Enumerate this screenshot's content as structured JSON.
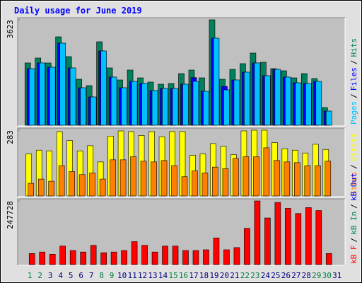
{
  "title": "Daily usage for June 2019",
  "legend_separator": "/",
  "chart_data": [
    {
      "type": "bar",
      "ylim": [
        0,
        3623
      ],
      "yticks": [
        3623
      ],
      "series": [
        {
          "name": "Hits",
          "color": "#00805c",
          "values": [
            2150,
            2319,
            2150,
            3043,
            2367,
            1594,
            1377,
            2874,
            1981,
            1570,
            1908,
            1642,
            1498,
            1425,
            1449,
            1787,
            1908,
            1642,
            3623,
            1594,
            1932,
            2126,
            2488,
            2174,
            1956,
            1884,
            1642,
            1787,
            1618,
            628,
            0
          ]
        },
        {
          "name": "Files",
          "color": "#0000ff",
          "values": [
            1956,
            2150,
            2005,
            2826,
            1981,
            1304,
            990,
            2560,
            1667,
            1304,
            1522,
            1449,
            1208,
            1280,
            1280,
            1425,
            1650,
            1184,
            2995,
            1350,
            1570,
            1836,
            2150,
            1715,
            1932,
            1667,
            1473,
            1449,
            1522,
            507,
            0
          ]
        },
        {
          "name": "Pages",
          "color": "#00c0ff",
          "values": [
            1956,
            2150,
            2005,
            2826,
            1981,
            1304,
            990,
            2560,
            1667,
            1304,
            1522,
            1449,
            1208,
            1280,
            1280,
            1425,
            1522,
            1184,
            2995,
            1232,
            1570,
            1836,
            2150,
            1715,
            1932,
            1667,
            1473,
            1449,
            1522,
            507,
            0
          ]
        }
      ]
    },
    {
      "type": "bar",
      "ylim": [
        0,
        283
      ],
      "yticks": [
        283
      ],
      "series": [
        {
          "name": "Visits",
          "color": "#ffff00",
          "values": [
            182,
            198,
            195,
            277,
            239,
            195,
            217,
            148,
            258,
            280,
            277,
            261,
            277,
            255,
            277,
            277,
            176,
            182,
            226,
            214,
            179,
            280,
            283,
            283,
            230,
            204,
            198,
            186,
            223,
            201,
            0
          ]
        },
        {
          "name": "Sites",
          "color": "#ff8000",
          "values": [
            57,
            75,
            66,
            132,
            107,
            94,
            101,
            75,
            157,
            157,
            170,
            151,
            148,
            154,
            132,
            85,
            110,
            101,
            126,
            119,
            163,
            170,
            170,
            208,
            154,
            148,
            145,
            132,
            132,
            151,
            0
          ]
        }
      ]
    },
    {
      "type": "bar",
      "ylim": [
        0,
        247728
      ],
      "yticks": [
        247728
      ],
      "categories": [
        "1",
        "2",
        "3",
        "4",
        "5",
        "6",
        "7",
        "8",
        "9",
        "10",
        "11",
        "12",
        "13",
        "14",
        "15",
        "16",
        "17",
        "18",
        "19",
        "20",
        "21",
        "22",
        "23",
        "24",
        "25",
        "26",
        "27",
        "28",
        "29",
        "30",
        "31"
      ],
      "category_colors": [
        "#008040",
        "#008040",
        "#000080",
        "#000080",
        "#000080",
        "#000080",
        "#000080",
        "#008040",
        "#008040",
        "#000080",
        "#000080",
        "#000080",
        "#000080",
        "#000080",
        "#008040",
        "#008040",
        "#000080",
        "#000080",
        "#000080",
        "#000080",
        "#000080",
        "#008040",
        "#008040",
        "#000080",
        "#000080",
        "#000080",
        "#000080",
        "#000080",
        "#008040",
        "#008040",
        "#000080"
      ],
      "series": [
        {
          "name": "kB Out",
          "color": "#0000ff",
          "values": [
            0,
            0,
            0,
            0,
            0,
            0,
            0,
            0,
            0,
            0,
            0,
            0,
            0,
            0,
            0,
            0,
            0,
            0,
            0,
            0,
            0,
            0,
            0,
            0,
            0,
            0,
            0,
            0,
            0,
            0,
            0
          ]
        },
        {
          "name": "kB In",
          "color": "#00805c",
          "values": [
            0,
            0,
            0,
            0,
            0,
            0,
            0,
            0,
            0,
            0,
            0,
            0,
            0,
            0,
            0,
            0,
            0,
            0,
            0,
            0,
            0,
            0,
            0,
            0,
            0,
            0,
            0,
            0,
            0,
            0,
            0
          ]
        },
        {
          "name": "kB F",
          "color": "#ff0000",
          "values": [
            45560,
            51255,
            42712,
            74033,
            56950,
            51255,
            76880,
            48407,
            51255,
            56950,
            91119,
            76880,
            51255,
            74033,
            74033,
            56950,
            56950,
            59797,
            105357,
            59797,
            68340,
            142373,
            247728,
            182238,
            242000,
            219254,
            199322,
            222101,
            210712,
            45560,
            0
          ]
        }
      ]
    }
  ]
}
